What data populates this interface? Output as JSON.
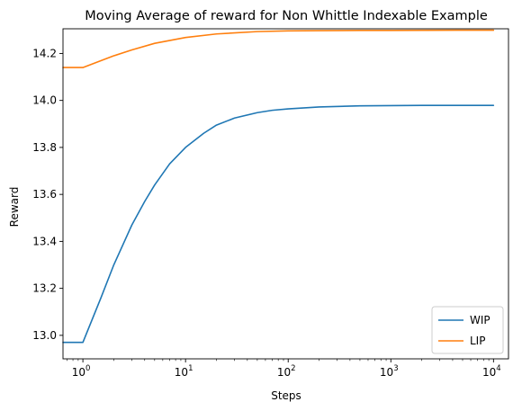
{
  "chart_data": {
    "type": "line",
    "title": "Moving Average of reward for Non Whittle Indexable Example",
    "xlabel": "Steps",
    "ylabel": "Reward",
    "xscale": "log",
    "xlim": [
      0.64,
      14000
    ],
    "ylim": [
      12.9,
      14.305
    ],
    "x_ticks": [
      {
        "value": 1,
        "base": "10",
        "exp": "0"
      },
      {
        "value": 10,
        "base": "10",
        "exp": "1"
      },
      {
        "value": 100,
        "base": "10",
        "exp": "2"
      },
      {
        "value": 1000,
        "base": "10",
        "exp": "3"
      },
      {
        "value": 10000,
        "base": "10",
        "exp": "4"
      }
    ],
    "y_ticks": [
      {
        "value": 13.0,
        "label": "13.0"
      },
      {
        "value": 13.2,
        "label": "13.2"
      },
      {
        "value": 13.4,
        "label": "13.4"
      },
      {
        "value": 13.6,
        "label": "13.6"
      },
      {
        "value": 13.8,
        "label": "13.8"
      },
      {
        "value": 14.0,
        "label": "14.0"
      },
      {
        "value": 14.2,
        "label": "14.2"
      }
    ],
    "legend_position": "lower-right",
    "grid": false,
    "series": [
      {
        "name": "WIP",
        "color": "#1f77b4",
        "x": [
          0.64,
          1,
          1.5,
          2,
          3,
          4,
          5,
          7,
          10,
          15,
          20,
          30,
          50,
          70,
          100,
          200,
          500,
          1000,
          2000,
          5000,
          10000
        ],
        "y": [
          12.97,
          12.97,
          13.16,
          13.3,
          13.47,
          13.57,
          13.64,
          13.73,
          13.8,
          13.86,
          13.895,
          13.925,
          13.948,
          13.958,
          13.964,
          13.972,
          13.977,
          13.978,
          13.979,
          13.979,
          13.979
        ]
      },
      {
        "name": "LIP",
        "color": "#ff7f0e",
        "x": [
          0.64,
          1,
          2,
          3,
          5,
          10,
          20,
          50,
          100,
          200,
          500,
          1000,
          5000,
          10000
        ],
        "y": [
          14.14,
          14.14,
          14.19,
          14.215,
          14.243,
          14.268,
          14.283,
          14.293,
          14.296,
          14.297,
          14.298,
          14.298,
          14.299,
          14.299
        ]
      }
    ]
  }
}
